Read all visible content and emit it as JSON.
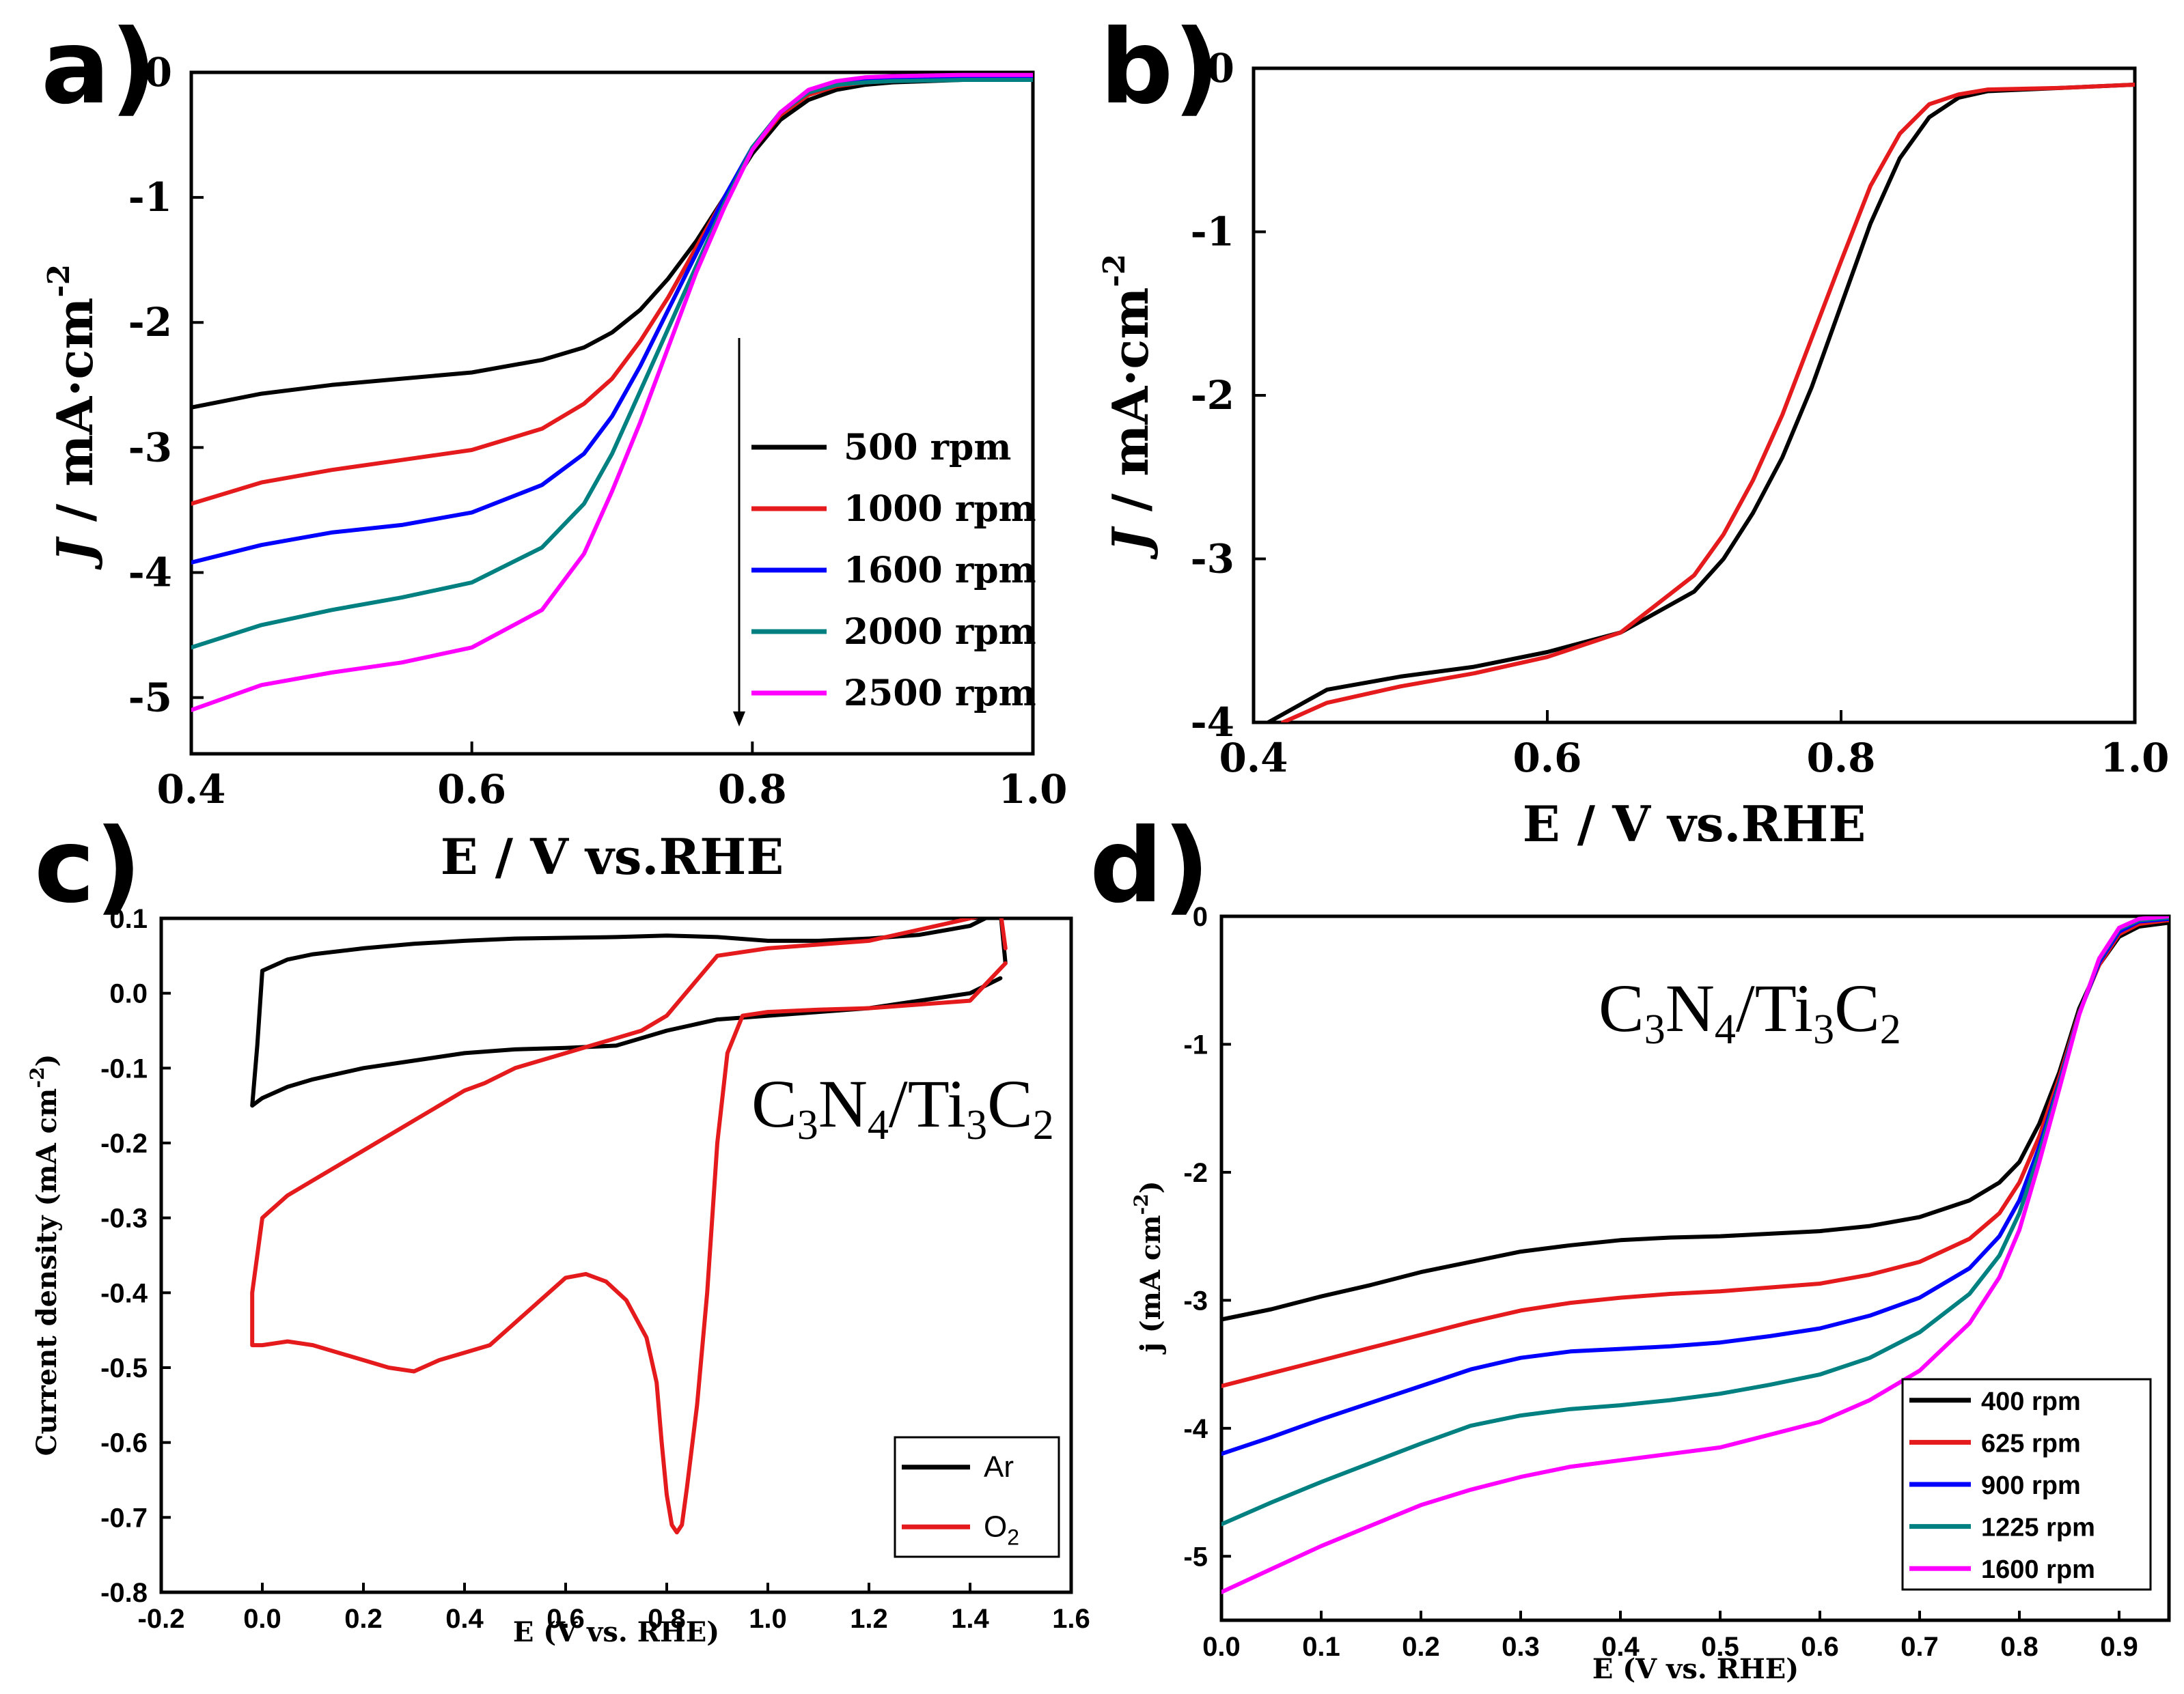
{
  "chart_data": [
    {
      "panel": "a)",
      "type": "line",
      "xlabel": "E / V vs.RHE",
      "ylabel": "J / mA·cm",
      "ylabel_sup": "-2",
      "xlim": [
        0.4,
        1.0
      ],
      "ylim": [
        -5.45,
        0
      ],
      "xticks": [
        0.4,
        0.6,
        0.8,
        1.0
      ],
      "xtick_labels": [
        "0.4",
        "0.6",
        "0.8",
        "1.0"
      ],
      "yticks": [
        0,
        -1,
        -2,
        -3,
        -4,
        -5
      ],
      "ytick_labels": [
        "0",
        "-1",
        "-2",
        "-3",
        "-4",
        "-5"
      ],
      "legend_position": "bottom-right",
      "annotation": "downward arrow indicating increasing rotation rate",
      "series": [
        {
          "name": "500 rpm",
          "color": "#000000",
          "x": [
            0.4,
            0.45,
            0.5,
            0.55,
            0.6,
            0.65,
            0.68,
            0.7,
            0.72,
            0.74,
            0.76,
            0.78,
            0.8,
            0.82,
            0.84,
            0.86,
            0.88,
            0.9,
            0.95,
            1.0
          ],
          "y": [
            -2.68,
            -2.57,
            -2.5,
            -2.45,
            -2.4,
            -2.3,
            -2.2,
            -2.08,
            -1.9,
            -1.65,
            -1.35,
            -1.0,
            -0.65,
            -0.38,
            -0.22,
            -0.14,
            -0.1,
            -0.08,
            -0.06,
            -0.04
          ]
        },
        {
          "name": "1000 rpm",
          "color": "#e41a1c",
          "x": [
            0.4,
            0.45,
            0.5,
            0.55,
            0.6,
            0.65,
            0.68,
            0.7,
            0.72,
            0.74,
            0.76,
            0.78,
            0.8,
            0.82,
            0.84,
            0.86,
            0.88,
            0.9,
            0.95,
            1.0
          ],
          "y": [
            -3.45,
            -3.28,
            -3.18,
            -3.1,
            -3.02,
            -2.85,
            -2.65,
            -2.45,
            -2.15,
            -1.8,
            -1.4,
            -1.0,
            -0.62,
            -0.34,
            -0.18,
            -0.11,
            -0.08,
            -0.07,
            -0.05,
            -0.04
          ]
        },
        {
          "name": "1600 rpm",
          "color": "#0000ff",
          "x": [
            0.4,
            0.45,
            0.5,
            0.55,
            0.6,
            0.65,
            0.68,
            0.7,
            0.72,
            0.74,
            0.76,
            0.78,
            0.8,
            0.82,
            0.84,
            0.86,
            0.88,
            0.9,
            0.95,
            1.0
          ],
          "y": [
            -3.92,
            -3.78,
            -3.68,
            -3.62,
            -3.52,
            -3.3,
            -3.05,
            -2.75,
            -2.35,
            -1.9,
            -1.45,
            -1.0,
            -0.6,
            -0.32,
            -0.16,
            -0.1,
            -0.07,
            -0.06,
            -0.05,
            -0.05
          ]
        },
        {
          "name": "2000 rpm",
          "color": "#008080",
          "x": [
            0.4,
            0.45,
            0.5,
            0.55,
            0.6,
            0.65,
            0.68,
            0.7,
            0.72,
            0.74,
            0.76,
            0.78,
            0.8,
            0.82,
            0.84,
            0.86,
            0.88,
            0.9,
            0.95,
            1.0
          ],
          "y": [
            -4.6,
            -4.42,
            -4.3,
            -4.2,
            -4.08,
            -3.8,
            -3.45,
            -3.05,
            -2.55,
            -2.05,
            -1.55,
            -1.05,
            -0.6,
            -0.32,
            -0.16,
            -0.1,
            -0.08,
            -0.07,
            -0.06,
            -0.06
          ]
        },
        {
          "name": "2500 rpm",
          "color": "#ff00ff",
          "x": [
            0.4,
            0.45,
            0.5,
            0.55,
            0.6,
            0.65,
            0.68,
            0.7,
            0.72,
            0.74,
            0.76,
            0.78,
            0.8,
            0.82,
            0.84,
            0.86,
            0.88,
            0.9,
            0.95,
            1.0
          ],
          "y": [
            -5.1,
            -4.9,
            -4.8,
            -4.72,
            -4.6,
            -4.3,
            -3.85,
            -3.35,
            -2.8,
            -2.2,
            -1.6,
            -1.08,
            -0.62,
            -0.32,
            -0.14,
            -0.07,
            -0.04,
            -0.03,
            -0.02,
            -0.02
          ]
        }
      ]
    },
    {
      "panel": "b)",
      "type": "line",
      "xlabel": "E / V vs.RHE",
      "ylabel": "J / mA·cm",
      "ylabel_sup": "-2",
      "xlim": [
        0.4,
        1.0
      ],
      "ylim": [
        -4.0,
        0
      ],
      "xticks": [
        0.4,
        0.6,
        0.8,
        1.0
      ],
      "xtick_labels": [
        "0.4",
        "0.6",
        "0.8",
        "1.0"
      ],
      "yticks": [
        0,
        -1,
        -2,
        -3,
        -4
      ],
      "ytick_labels": [
        "0",
        "-1",
        "-2",
        "-3",
        "-4"
      ],
      "series": [
        {
          "name": "black",
          "color": "#000000",
          "x": [
            0.41,
            0.45,
            0.5,
            0.55,
            0.6,
            0.65,
            0.7,
            0.72,
            0.74,
            0.76,
            0.78,
            0.8,
            0.82,
            0.84,
            0.86,
            0.88,
            0.9,
            0.95,
            1.0
          ],
          "y": [
            -4.0,
            -3.8,
            -3.72,
            -3.66,
            -3.57,
            -3.45,
            -3.2,
            -3.0,
            -2.72,
            -2.38,
            -1.95,
            -1.45,
            -0.95,
            -0.55,
            -0.3,
            -0.18,
            -0.14,
            -0.12,
            -0.1
          ]
        },
        {
          "name": "red",
          "color": "#e41a1c",
          "x": [
            0.42,
            0.45,
            0.5,
            0.55,
            0.6,
            0.65,
            0.7,
            0.72,
            0.74,
            0.76,
            0.78,
            0.8,
            0.82,
            0.84,
            0.86,
            0.88,
            0.9,
            0.95,
            1.0
          ],
          "y": [
            -4.0,
            -3.88,
            -3.78,
            -3.7,
            -3.6,
            -3.45,
            -3.1,
            -2.85,
            -2.52,
            -2.12,
            -1.65,
            -1.18,
            -0.72,
            -0.4,
            -0.22,
            -0.16,
            -0.13,
            -0.12,
            -0.1
          ]
        }
      ]
    },
    {
      "panel": "c)",
      "type": "line",
      "xlabel": "E (V vs. RHE)",
      "ylabel": "Current density (mA cm",
      "ylabel_sup": "-2",
      "ylabel_close": ")",
      "annotation": [
        "C",
        "3",
        "N",
        "4",
        "/Ti",
        "3",
        "C",
        "2"
      ],
      "xlim": [
        -0.2,
        1.6
      ],
      "ylim": [
        -0.8,
        0.1
      ],
      "xticks": [
        -0.2,
        0.0,
        0.2,
        0.4,
        0.6,
        0.8,
        1.0,
        1.2,
        1.4,
        1.6
      ],
      "xtick_labels": [
        "-0.2",
        "0.0",
        "0.2",
        "0.4",
        "0.6",
        "0.8",
        "1.0",
        "1.2",
        "1.4",
        "1.6"
      ],
      "yticks": [
        0.1,
        0.0,
        -0.1,
        -0.2,
        -0.3,
        -0.4,
        -0.5,
        -0.6,
        -0.7,
        -0.8
      ],
      "ytick_labels": [
        "0.1",
        "0.0",
        "-0.1",
        "-0.2",
        "-0.3",
        "-0.4",
        "-0.5",
        "-0.6",
        "-0.7",
        "-0.8"
      ],
      "legend_position": "bottom-right",
      "series": [
        {
          "name": "Ar",
          "color": "#000000",
          "x": [
            1.46,
            1.4,
            1.3,
            1.2,
            1.1,
            1.0,
            0.9,
            0.8,
            0.7,
            0.6,
            0.5,
            0.4,
            0.3,
            0.2,
            0.1,
            0.05,
            0.0,
            -0.02,
            -0.01,
            0.0,
            0.05,
            0.1,
            0.2,
            0.3,
            0.4,
            0.5,
            0.6,
            0.7,
            0.8,
            0.9,
            1.0,
            1.1,
            1.2,
            1.3,
            1.4,
            1.46,
            1.47
          ],
          "y": [
            0.02,
            0.0,
            -0.01,
            -0.02,
            -0.025,
            -0.03,
            -0.035,
            -0.05,
            -0.07,
            -0.073,
            -0.075,
            -0.08,
            -0.09,
            -0.1,
            -0.115,
            -0.125,
            -0.14,
            -0.15,
            -0.07,
            0.03,
            0.045,
            0.052,
            0.06,
            0.066,
            0.07,
            0.073,
            0.074,
            0.075,
            0.077,
            0.075,
            0.07,
            0.07,
            0.073,
            0.078,
            0.09,
            0.11,
            0.04
          ]
        },
        {
          "name": "O",
          "legend_sub": "2",
          "color": "#e41a1c",
          "x": [
            1.47,
            1.4,
            1.3,
            1.2,
            1.1,
            1.0,
            0.95,
            0.92,
            0.9,
            0.88,
            0.86,
            0.84,
            0.83,
            0.82,
            0.81,
            0.8,
            0.79,
            0.78,
            0.76,
            0.72,
            0.68,
            0.64,
            0.6,
            0.55,
            0.5,
            0.45,
            0.4,
            0.35,
            0.3,
            0.25,
            0.2,
            0.1,
            0.05,
            0.0,
            -0.02,
            -0.02,
            -0.01,
            0.0,
            0.05,
            0.1,
            0.2,
            0.3,
            0.4,
            0.44,
            0.5,
            0.6,
            0.65,
            0.7,
            0.75,
            0.8,
            0.85,
            0.9,
            1.0,
            1.1,
            1.2,
            1.3,
            1.4,
            1.46,
            1.47
          ],
          "y": [
            0.04,
            -0.01,
            -0.015,
            -0.02,
            -0.022,
            -0.025,
            -0.03,
            -0.08,
            -0.2,
            -0.4,
            -0.55,
            -0.66,
            -0.71,
            -0.72,
            -0.71,
            -0.67,
            -0.6,
            -0.52,
            -0.46,
            -0.41,
            -0.385,
            -0.375,
            -0.38,
            -0.41,
            -0.44,
            -0.47,
            -0.48,
            -0.49,
            -0.505,
            -0.5,
            -0.49,
            -0.47,
            -0.465,
            -0.47,
            -0.47,
            -0.4,
            -0.35,
            -0.3,
            -0.27,
            -0.25,
            -0.21,
            -0.17,
            -0.13,
            -0.12,
            -0.1,
            -0.08,
            -0.07,
            -0.06,
            -0.05,
            -0.03,
            0.01,
            0.05,
            0.06,
            0.065,
            0.07,
            0.085,
            0.1,
            0.11,
            0.06
          ]
        }
      ]
    },
    {
      "panel": "d)",
      "type": "line",
      "xlabel": "E (V vs. RHE)",
      "ylabel": "j (mA cm",
      "ylabel_sup": "-2",
      "ylabel_close": ")",
      "annotation": [
        "C",
        "3",
        "N",
        "4",
        "/Ti",
        "3",
        "C",
        "2"
      ],
      "xlim": [
        0.0,
        0.95
      ],
      "ylim": [
        -5.5,
        0
      ],
      "xticks": [
        0.0,
        0.1,
        0.2,
        0.3,
        0.4,
        0.5,
        0.6,
        0.7,
        0.8,
        0.9
      ],
      "xtick_labels": [
        "0.0",
        "0.1",
        "0.2",
        "0.3",
        "0.4",
        "0.5",
        "0.6",
        "0.7",
        "0.8",
        "0.9"
      ],
      "yticks": [
        0,
        -1,
        -2,
        -3,
        -4,
        -5
      ],
      "ytick_labels": [
        "0",
        "-1",
        "-2",
        "-3",
        "-4",
        "-5"
      ],
      "legend_position": "bottom-right",
      "series": [
        {
          "name": "400  rpm",
          "color": "#000000",
          "x": [
            0.0,
            0.05,
            0.1,
            0.15,
            0.2,
            0.25,
            0.3,
            0.35,
            0.4,
            0.45,
            0.5,
            0.55,
            0.6,
            0.65,
            0.7,
            0.75,
            0.78,
            0.8,
            0.82,
            0.84,
            0.86,
            0.88,
            0.9,
            0.92,
            0.95
          ],
          "y": [
            -3.15,
            -3.07,
            -2.97,
            -2.88,
            -2.78,
            -2.7,
            -2.62,
            -2.57,
            -2.53,
            -2.51,
            -2.5,
            -2.48,
            -2.46,
            -2.42,
            -2.35,
            -2.22,
            -2.08,
            -1.92,
            -1.62,
            -1.22,
            -0.72,
            -0.38,
            -0.16,
            -0.08,
            -0.05
          ]
        },
        {
          "name": "625  rpm",
          "color": "#e41a1c",
          "x": [
            0.0,
            0.05,
            0.1,
            0.15,
            0.2,
            0.25,
            0.3,
            0.35,
            0.4,
            0.45,
            0.5,
            0.55,
            0.6,
            0.65,
            0.7,
            0.75,
            0.78,
            0.8,
            0.82,
            0.84,
            0.86,
            0.88,
            0.9,
            0.92,
            0.95
          ],
          "y": [
            -3.67,
            -3.57,
            -3.47,
            -3.37,
            -3.27,
            -3.17,
            -3.08,
            -3.02,
            -2.98,
            -2.95,
            -2.93,
            -2.9,
            -2.87,
            -2.8,
            -2.7,
            -2.52,
            -2.32,
            -2.08,
            -1.72,
            -1.26,
            -0.75,
            -0.38,
            -0.14,
            -0.06,
            -0.03
          ]
        },
        {
          "name": "900  rpm",
          "color": "#0000ff",
          "x": [
            0.0,
            0.05,
            0.1,
            0.15,
            0.2,
            0.25,
            0.3,
            0.35,
            0.4,
            0.45,
            0.5,
            0.55,
            0.6,
            0.65,
            0.7,
            0.75,
            0.78,
            0.8,
            0.82,
            0.84,
            0.86,
            0.88,
            0.9,
            0.92,
            0.95
          ],
          "y": [
            -4.2,
            -4.07,
            -3.93,
            -3.8,
            -3.67,
            -3.54,
            -3.45,
            -3.4,
            -3.38,
            -3.36,
            -3.33,
            -3.28,
            -3.22,
            -3.12,
            -2.98,
            -2.75,
            -2.5,
            -2.22,
            -1.8,
            -1.3,
            -0.76,
            -0.36,
            -0.12,
            -0.04,
            -0.02
          ]
        },
        {
          "name": "1225  rpm",
          "color": "#008080",
          "x": [
            0.0,
            0.05,
            0.1,
            0.15,
            0.2,
            0.25,
            0.3,
            0.35,
            0.4,
            0.45,
            0.5,
            0.55,
            0.6,
            0.65,
            0.7,
            0.75,
            0.78,
            0.8,
            0.82,
            0.84,
            0.86,
            0.88,
            0.9,
            0.92,
            0.95
          ],
          "y": [
            -4.75,
            -4.58,
            -4.42,
            -4.27,
            -4.12,
            -3.98,
            -3.9,
            -3.85,
            -3.82,
            -3.78,
            -3.73,
            -3.66,
            -3.58,
            -3.45,
            -3.25,
            -2.95,
            -2.65,
            -2.32,
            -1.85,
            -1.32,
            -0.76,
            -0.34,
            -0.1,
            -0.03,
            -0.01
          ]
        },
        {
          "name": "1600  rpm",
          "color": "#ff00ff",
          "x": [
            0.0,
            0.05,
            0.1,
            0.15,
            0.2,
            0.25,
            0.3,
            0.35,
            0.4,
            0.45,
            0.5,
            0.55,
            0.6,
            0.65,
            0.7,
            0.75,
            0.78,
            0.8,
            0.82,
            0.84,
            0.86,
            0.88,
            0.9,
            0.92,
            0.95
          ],
          "y": [
            -5.28,
            -5.1,
            -4.92,
            -4.76,
            -4.6,
            -4.48,
            -4.38,
            -4.3,
            -4.25,
            -4.2,
            -4.15,
            -4.05,
            -3.95,
            -3.78,
            -3.55,
            -3.18,
            -2.82,
            -2.45,
            -1.92,
            -1.35,
            -0.77,
            -0.33,
            -0.09,
            -0.02,
            0.0
          ]
        }
      ]
    }
  ]
}
